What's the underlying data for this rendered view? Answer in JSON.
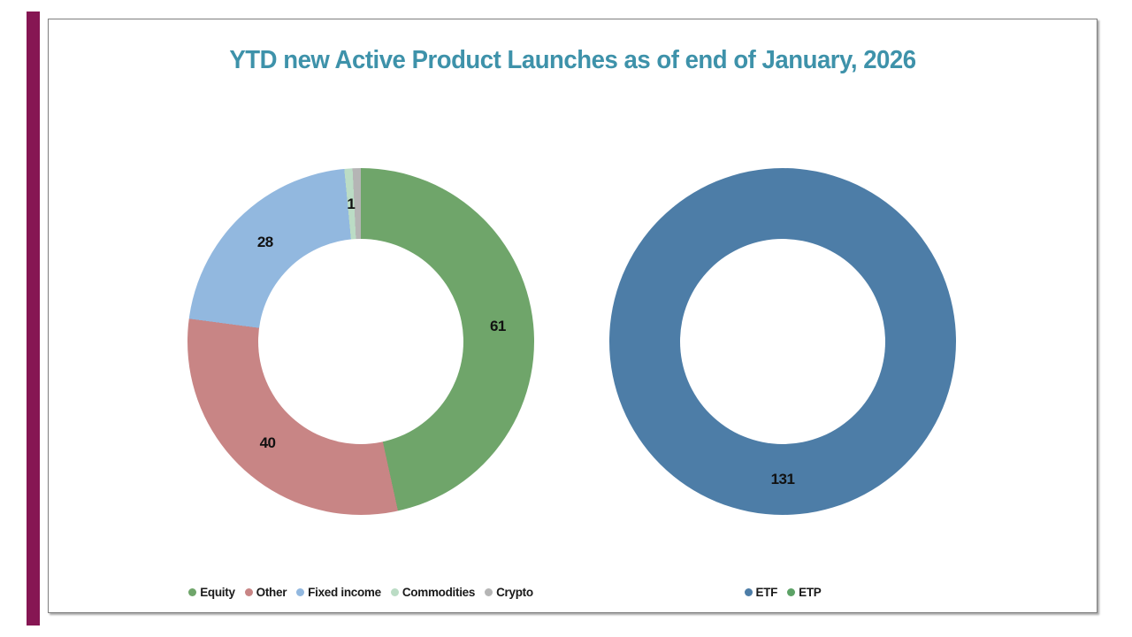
{
  "slide": {
    "background": "#ffffff",
    "border_color": "#7f7f7f",
    "accent_bar_color": "#861653"
  },
  "title": {
    "text": "YTD new Active Product Launches as of end of January, 2026",
    "color": "#3E92AA"
  },
  "chart_data": [
    {
      "type": "pie",
      "subtype": "donut",
      "name": "asset-class-donut",
      "categories": [
        "Equity",
        "Other",
        "Fixed income",
        "Commodities",
        "Crypto"
      ],
      "values": [
        61,
        40,
        28,
        1,
        1
      ],
      "colors": [
        "#6FA56A",
        "#C88585",
        "#92B8DF",
        "#BBDCC5",
        "#B5B5B5"
      ],
      "data_labels": [
        "61",
        "40",
        "28",
        "1",
        ""
      ],
      "label_visible": [
        true,
        true,
        true,
        true,
        false
      ],
      "label_color": "#111111",
      "total": 131,
      "start_angle_deg": 0,
      "direction": "clockwise",
      "inner_radius_ratio": 0.59,
      "legend_position": "bottom"
    },
    {
      "type": "pie",
      "subtype": "donut",
      "name": "wrapper-type-donut",
      "categories": [
        "ETF",
        "ETP"
      ],
      "values": [
        131,
        0
      ],
      "colors": [
        "#4D7DA7",
        "#5CA266"
      ],
      "data_labels": [
        "131",
        ""
      ],
      "label_visible": [
        true,
        false
      ],
      "label_color": "#111111",
      "total": 131,
      "start_angle_deg": 0,
      "direction": "clockwise",
      "inner_radius_ratio": 0.59,
      "legend_position": "bottom"
    }
  ]
}
